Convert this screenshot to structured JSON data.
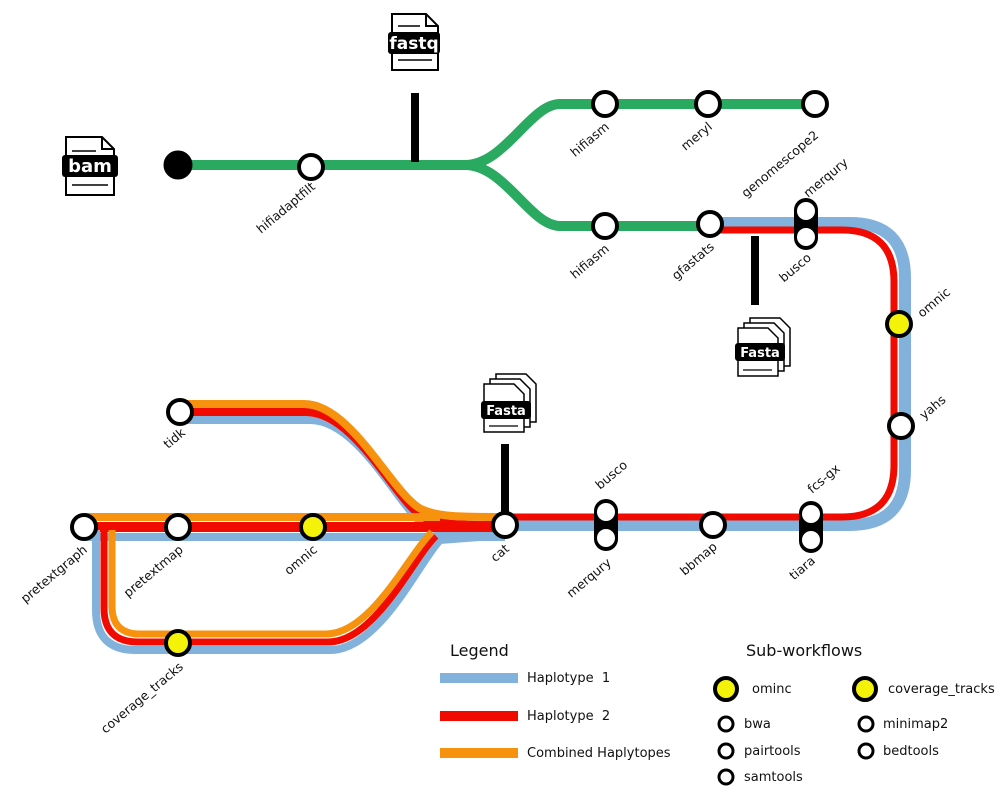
{
  "colors": {
    "green": "#2aaa60",
    "haplotype1": "#82b2dc",
    "haplotype2": "#f00a00",
    "combined": "#f7920f",
    "node_fill": "#ffffff",
    "node_stroke": "#000000",
    "subworkflow": "#f5f20a",
    "input_stop": "#000000"
  },
  "files": {
    "bam": "bam",
    "fastq": "fastq",
    "fasta": "Fasta"
  },
  "nodes": {
    "hifiadaptfilt": "hifiadaptfilt",
    "hifiasm_1": "hifiasm",
    "meryl": "meryl",
    "genomescope2": "genomescope2",
    "hifiasm_2": "hifiasm",
    "gfastats": "gfastats",
    "merqury_top": "merqury",
    "busco_top": "busco",
    "omnic_right": "omnic",
    "yahs": "yahs",
    "fcs_gx": "fcs-gx",
    "tiara": "tiara",
    "bbmap": "bbmap",
    "busco_bottom": "busco",
    "merqury_bottom": "merqury",
    "cat": "cat",
    "tidk": "tidk",
    "pretextgraph": "pretextgraph",
    "pretextmap": "pretextmap",
    "omnic_left": "omnic",
    "coverage_tracks": "coverage_tracks"
  },
  "legend": {
    "title": "Legend",
    "items": [
      {
        "label": "Haplotype  1",
        "color": "#82b2dc"
      },
      {
        "label": "Haplotype  2",
        "color": "#f00a00"
      },
      {
        "label": "Combined Haplytopes",
        "color": "#f7920f"
      }
    ]
  },
  "subworkflows": {
    "title": "Sub-workflows",
    "groups": [
      {
        "name": "ominc",
        "tools": [
          "bwa",
          "pairtools",
          "samtools"
        ]
      },
      {
        "name": "coverage_tracks",
        "tools": [
          "minimap2",
          "bedtools"
        ]
      }
    ]
  }
}
